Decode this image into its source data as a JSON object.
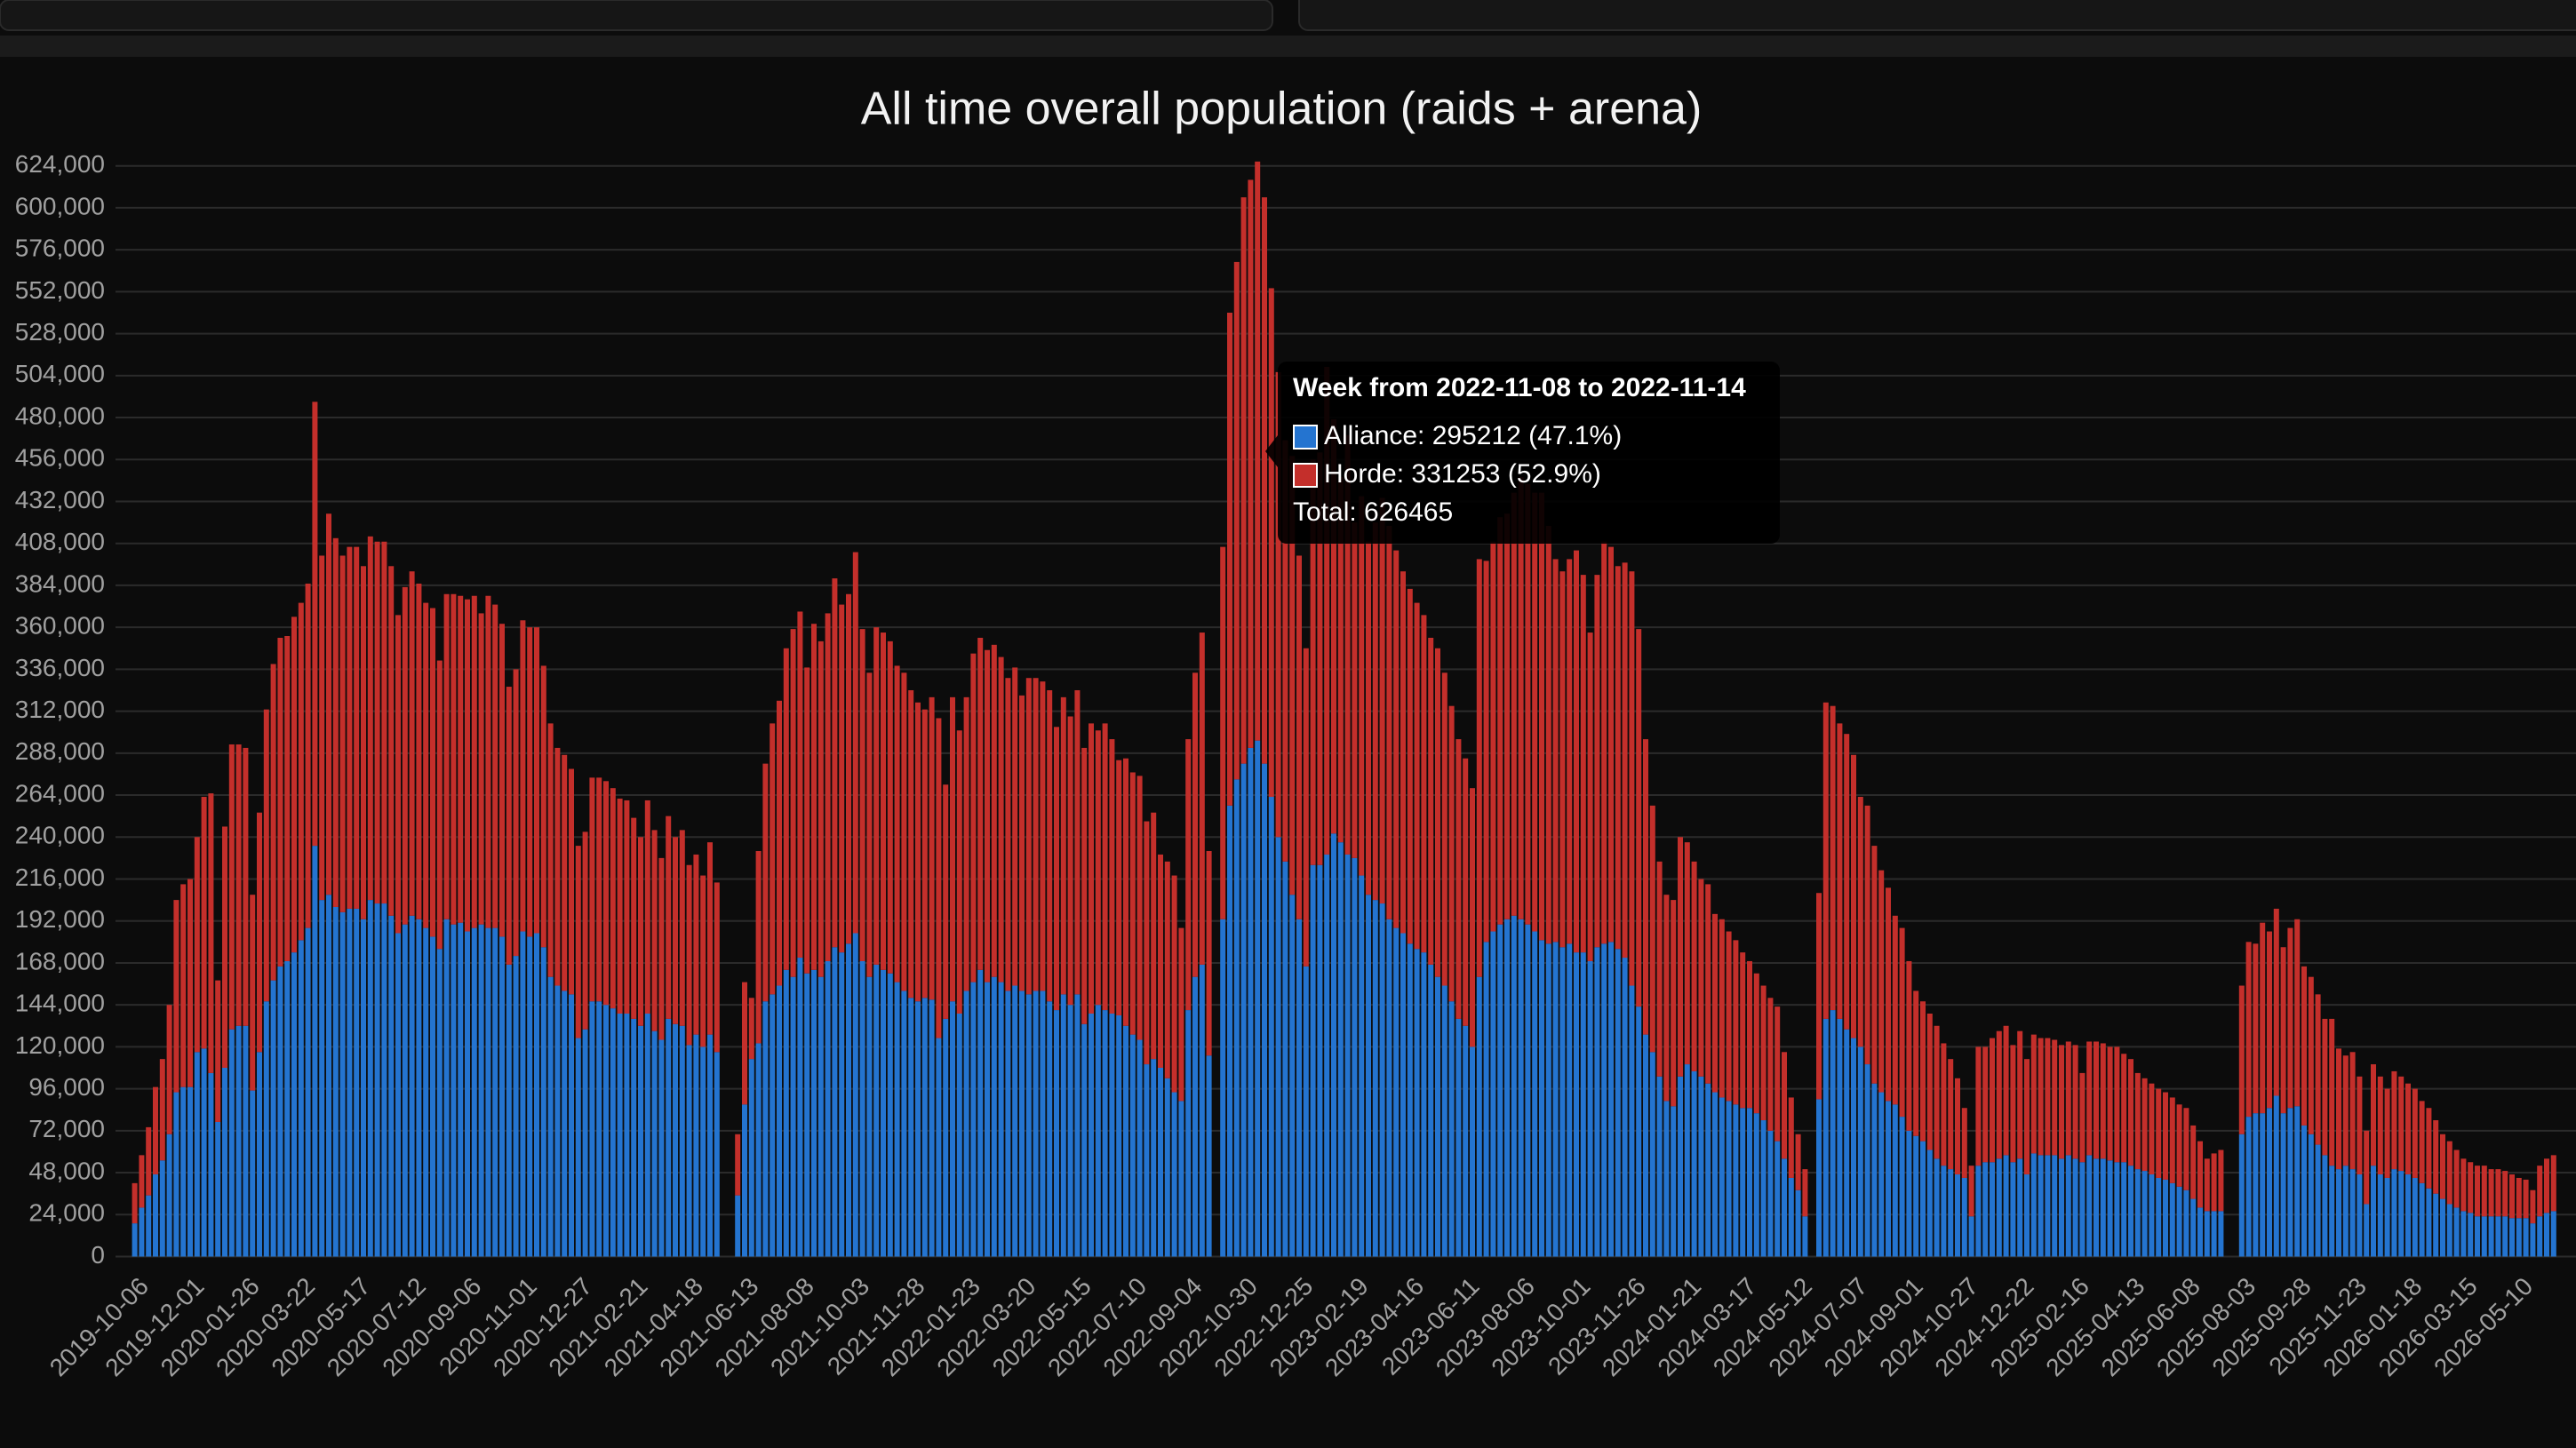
{
  "chart_data": {
    "type": "bar",
    "stacked": true,
    "grid": true,
    "title": "All time overall population (raids + arena)",
    "ylim": [
      0,
      624000
    ],
    "yticks": [
      0,
      {
        "value": 24000,
        "label": "24,000"
      },
      {
        "value": 48000,
        "label": "48,000"
      },
      {
        "value": 72000,
        "label": "72,000"
      },
      {
        "value": 96000,
        "label": "96,000"
      },
      {
        "value": 120000,
        "label": "120,000"
      },
      {
        "value": 144000,
        "label": "144,000"
      },
      {
        "value": 168000,
        "label": "168,000"
      },
      {
        "value": 192000,
        "label": "192,000"
      },
      {
        "value": 216000,
        "label": "216,000"
      },
      {
        "value": 240000,
        "label": "240,000"
      },
      {
        "value": 264000,
        "label": "264,000"
      },
      {
        "value": 288000,
        "label": "288,000"
      },
      {
        "value": 312000,
        "label": "312,000"
      },
      {
        "value": 336000,
        "label": "336,000"
      },
      {
        "value": 360000,
        "label": "360,000"
      },
      {
        "value": 384000,
        "label": "384,000"
      },
      {
        "value": 408000,
        "label": "408,000"
      },
      {
        "value": 432000,
        "label": "432,000"
      },
      {
        "value": 456000,
        "label": "456,000"
      },
      {
        "value": 480000,
        "label": "480,000"
      },
      {
        "value": 504000,
        "label": "504,000"
      },
      {
        "value": 528000,
        "label": "528,000"
      },
      {
        "value": 552000,
        "label": "552,000"
      },
      {
        "value": 576000,
        "label": "576,000"
      },
      {
        "value": 600000,
        "label": "600,000"
      },
      {
        "value": 624000,
        "label": "624,000"
      }
    ],
    "categories": [
      "2019-10-06",
      null,
      null,
      null,
      null,
      null,
      null,
      null,
      "2019-12-01",
      null,
      null,
      null,
      null,
      null,
      null,
      null,
      "2020-01-26",
      null,
      null,
      null,
      null,
      null,
      null,
      null,
      "2020-03-22",
      null,
      null,
      null,
      null,
      null,
      null,
      null,
      "2020-05-17",
      null,
      null,
      null,
      null,
      null,
      null,
      null,
      "2020-07-12",
      null,
      null,
      null,
      null,
      null,
      null,
      null,
      "2020-09-06",
      null,
      null,
      null,
      null,
      null,
      null,
      null,
      "2020-11-01",
      null,
      null,
      null,
      null,
      null,
      null,
      null,
      "2020-12-27",
      null,
      null,
      null,
      null,
      null,
      null,
      null,
      "2021-02-21",
      null,
      null,
      null,
      null,
      null,
      null,
      null,
      "2021-04-18",
      null,
      null,
      null,
      null,
      null,
      null,
      null,
      "2021-06-13",
      null,
      null,
      null,
      null,
      null,
      null,
      null,
      "2021-08-08",
      null,
      null,
      null,
      null,
      null,
      null,
      null,
      "2021-10-03",
      null,
      null,
      null,
      null,
      null,
      null,
      null,
      "2021-11-28",
      null,
      null,
      null,
      null,
      null,
      null,
      null,
      "2022-01-23",
      null,
      null,
      null,
      null,
      null,
      null,
      null,
      "2022-03-20",
      null,
      null,
      null,
      null,
      null,
      null,
      null,
      "2022-05-15",
      null,
      null,
      null,
      null,
      null,
      null,
      null,
      "2022-07-10",
      null,
      null,
      null,
      null,
      null,
      null,
      null,
      "2022-09-04",
      null,
      null,
      null,
      null,
      null,
      null,
      null,
      "2022-10-30",
      null,
      null,
      null,
      null,
      null,
      null,
      null,
      "2022-12-25",
      null,
      null,
      null,
      null,
      null,
      null,
      null,
      "2023-02-19",
      null,
      null,
      null,
      null,
      null,
      null,
      null,
      "2023-04-16",
      null,
      null,
      null,
      null,
      null,
      null,
      null,
      "2023-06-11",
      null,
      null,
      null,
      null,
      null,
      null,
      null,
      "2023-08-06",
      null,
      null,
      null,
      null,
      null,
      null,
      null,
      "2023-10-01",
      null,
      null,
      null,
      null,
      null,
      null,
      null,
      "2023-11-26",
      null,
      null,
      null,
      null,
      null,
      null,
      null,
      "2024-01-21",
      null,
      null,
      null,
      null,
      null,
      null,
      null,
      "2024-03-17",
      null,
      null,
      null,
      null,
      null,
      null,
      null,
      "2024-05-12",
      null,
      null,
      null,
      null,
      null,
      null,
      null,
      "2024-07-07",
      null,
      null,
      null,
      null,
      null,
      null,
      null,
      "2024-09-01",
      null,
      null,
      null,
      null,
      null,
      null,
      null,
      "2024-10-27",
      null,
      null,
      null,
      null,
      null,
      null,
      null,
      "2024-12-22",
      null,
      null,
      null,
      null,
      null,
      null,
      null,
      "2025-02-16",
      null,
      null,
      null,
      null,
      null,
      null,
      null,
      "2025-04-13",
      null,
      null,
      null,
      null,
      null,
      null,
      null,
      "2025-06-08",
      null,
      null,
      null,
      null,
      null,
      null,
      null,
      "2025-08-03",
      null,
      null,
      null,
      null,
      null,
      null,
      null,
      "2025-09-28",
      null,
      null,
      null,
      null,
      null,
      null,
      null,
      "2025-11-23",
      null,
      null,
      null,
      null,
      null,
      null,
      null,
      "2026-01-18",
      null,
      null,
      null,
      null,
      null,
      null,
      null,
      "2026-03-15",
      null,
      null,
      null,
      null,
      null,
      null,
      null,
      "2026-05-10",
      null,
      null,
      null,
      null,
      null
    ],
    "series": [
      {
        "name": "Alliance",
        "color": "#2474d0",
        "values": [
          19000,
          28000,
          35000,
          47000,
          55000,
          70000,
          94000,
          97000,
          97000,
          117000,
          119000,
          105000,
          77000,
          108000,
          130000,
          132000,
          132000,
          95000,
          117000,
          146000,
          158000,
          166000,
          169000,
          174000,
          181000,
          188000,
          235000,
          204000,
          207000,
          200000,
          197000,
          199000,
          199000,
          193000,
          204000,
          202000,
          202000,
          195000,
          185000,
          190000,
          195000,
          193000,
          188000,
          183000,
          176000,
          193000,
          190000,
          191000,
          186000,
          188000,
          190000,
          188000,
          188000,
          183000,
          167000,
          172000,
          186000,
          183000,
          185000,
          177000,
          160000,
          155000,
          152000,
          150000,
          125000,
          130000,
          146000,
          146000,
          144000,
          142000,
          139000,
          139000,
          136000,
          132000,
          139000,
          129000,
          124000,
          136000,
          133000,
          132000,
          121000,
          127000,
          120000,
          127000,
          117000,
          null,
          null,
          35000,
          87000,
          113000,
          122000,
          146000,
          150000,
          155000,
          164000,
          160000,
          171000,
          162000,
          164000,
          160000,
          169000,
          177000,
          174000,
          179000,
          185000,
          169000,
          160000,
          167000,
          164000,
          162000,
          157000,
          152000,
          148000,
          146000,
          148000,
          147000,
          125000,
          136000,
          146000,
          139000,
          152000,
          157000,
          164000,
          157000,
          160000,
          157000,
          152000,
          155000,
          152000,
          150000,
          152000,
          152000,
          146000,
          141000,
          150000,
          144000,
          150000,
          133000,
          139000,
          144000,
          141000,
          139000,
          138000,
          132000,
          127000,
          124000,
          110000,
          113000,
          108000,
          102000,
          94000,
          89000,
          141000,
          160000,
          167000,
          115000,
          null,
          193000,
          258000,
          273000,
          282000,
          291000,
          295212,
          282000,
          263000,
          240000,
          226000,
          207000,
          193000,
          166000,
          224000,
          224000,
          230000,
          242000,
          237000,
          230000,
          228000,
          218000,
          207000,
          204000,
          202000,
          193000,
          188000,
          185000,
          179000,
          176000,
          174000,
          167000,
          160000,
          155000,
          146000,
          136000,
          132000,
          120000,
          160000,
          180000,
          186000,
          190000,
          193000,
          195000,
          193000,
          190000,
          186000,
          181000,
          179000,
          180000,
          177000,
          179000,
          174000,
          174000,
          169000,
          177000,
          179000,
          180000,
          176000,
          171000,
          155000,
          143000,
          127000,
          117000,
          103000,
          89000,
          86000,
          103000,
          110000,
          106000,
          103000,
          99000,
          94000,
          91000,
          89000,
          87000,
          85000,
          85000,
          82000,
          78000,
          72000,
          66000,
          56000,
          45000,
          38000,
          23000,
          null,
          90000,
          136000,
          141000,
          136000,
          130000,
          125000,
          120000,
          110000,
          99000,
          94000,
          89000,
          87000,
          80000,
          72000,
          69000,
          66000,
          61000,
          56000,
          52000,
          50000,
          47000,
          45000,
          23000,
          52000,
          54000,
          54000,
          56000,
          58000,
          54000,
          56000,
          47000,
          59000,
          58000,
          58000,
          58000,
          56000,
          58000,
          56000,
          54000,
          58000,
          56000,
          56000,
          55000,
          54000,
          54000,
          52000,
          50000,
          49000,
          47000,
          45000,
          44000,
          42000,
          40000,
          38000,
          33000,
          28000,
          26000,
          26000,
          26000,
          null,
          null,
          70000,
          80000,
          82000,
          82000,
          85000,
          92000,
          82000,
          85000,
          86000,
          75000,
          70000,
          64000,
          58000,
          52000,
          50000,
          52000,
          50000,
          47000,
          30000,
          52000,
          47000,
          45000,
          50000,
          49000,
          47000,
          45000,
          42000,
          39000,
          36000,
          33000,
          30000,
          28000,
          26000,
          25000,
          23000,
          23000,
          23000,
          23000,
          23000,
          22000,
          22000,
          22000,
          19000,
          23000,
          25000,
          26000
        ]
      },
      {
        "name": "Horde",
        "color": "#c42f2b",
        "values": [
          23000,
          30000,
          39000,
          50000,
          58000,
          74000,
          110000,
          116000,
          119000,
          123000,
          144000,
          160000,
          81000,
          138000,
          163000,
          161000,
          159000,
          112000,
          137000,
          167000,
          181000,
          188000,
          186000,
          192000,
          193000,
          197000,
          254000,
          197000,
          218000,
          211000,
          204000,
          207000,
          207000,
          202000,
          208000,
          207000,
          207000,
          200000,
          182000,
          193000,
          197000,
          192000,
          186000,
          188000,
          165000,
          186000,
          189000,
          187000,
          190000,
          190000,
          178000,
          190000,
          185000,
          179000,
          159000,
          164000,
          178000,
          177000,
          175000,
          161000,
          145000,
          136000,
          135000,
          129000,
          110000,
          113000,
          128000,
          128000,
          128000,
          126000,
          123000,
          122000,
          115000,
          108000,
          122000,
          115000,
          104000,
          116000,
          107000,
          112000,
          103000,
          103000,
          98000,
          110000,
          97000,
          null,
          null,
          35000,
          70000,
          35000,
          110000,
          136000,
          155000,
          163000,
          184000,
          199000,
          198000,
          175000,
          198000,
          192000,
          199000,
          211000,
          199000,
          200000,
          218000,
          190000,
          174000,
          193000,
          193000,
          190000,
          181000,
          182000,
          176000,
          171000,
          165000,
          173000,
          183000,
          134000,
          174000,
          162000,
          168000,
          188000,
          190000,
          190000,
          190000,
          186000,
          179000,
          182000,
          169000,
          181000,
          179000,
          177000,
          178000,
          162000,
          170000,
          165000,
          174000,
          158000,
          166000,
          157000,
          164000,
          157000,
          146000,
          153000,
          150000,
          151000,
          139000,
          141000,
          122000,
          124000,
          124000,
          99000,
          155000,
          174000,
          190000,
          117000,
          null,
          213000,
          282000,
          296000,
          324000,
          325000,
          331253,
          324000,
          291000,
          266000,
          241000,
          251000,
          208000,
          182000,
          232000,
          236000,
          279000,
          237000,
          209000,
          240000,
          192000,
          217000,
          202000,
          216000,
          232000,
          225000,
          216000,
          207000,
          203000,
          198000,
          193000,
          187000,
          188000,
          179000,
          169000,
          160000,
          153000,
          148000,
          239000,
          218000,
          223000,
          233000,
          232000,
          242000,
          253000,
          252000,
          251000,
          256000,
          239000,
          219000,
          215000,
          220000,
          230000,
          216000,
          188000,
          213000,
          230000,
          226000,
          219000,
          226000,
          237000,
          216000,
          169000,
          141000,
          123000,
          118000,
          118000,
          137000,
          127000,
          120000,
          113000,
          114000,
          102000,
          102000,
          97000,
          94000,
          89000,
          84000,
          80000,
          77000,
          76000,
          77000,
          61000,
          46000,
          32000,
          27000,
          null,
          118000,
          181000,
          174000,
          169000,
          169000,
          162000,
          143000,
          148000,
          136000,
          127000,
          122000,
          108000,
          108000,
          97000,
          83000,
          80000,
          78000,
          76000,
          70000,
          63000,
          55000,
          40000,
          29000,
          68000,
          66000,
          71000,
          73000,
          74000,
          67000,
          73000,
          66000,
          68000,
          67000,
          67000,
          66000,
          65000,
          65000,
          65000,
          51000,
          65000,
          67000,
          66000,
          65000,
          66000,
          62000,
          61000,
          55000,
          53000,
          52000,
          51000,
          50000,
          49000,
          47000,
          47000,
          42000,
          38000,
          30000,
          33000,
          35000,
          null,
          null,
          85000,
          100000,
          97000,
          109000,
          101000,
          107000,
          95000,
          103000,
          107000,
          91000,
          90000,
          86000,
          78000,
          84000,
          69000,
          63000,
          67000,
          56000,
          42000,
          58000,
          56000,
          51000,
          56000,
          54000,
          52000,
          51000,
          47000,
          46000,
          42000,
          37000,
          36000,
          33000,
          30000,
          29000,
          29000,
          29000,
          27000,
          27000,
          26000,
          25000,
          23000,
          22000,
          19000,
          29000,
          31000,
          32000
        ]
      }
    ],
    "tooltip": {
      "title": "Week from 2022-11-08 to 2022-11-14",
      "items": [
        "Alliance: 295212 (47.1%)",
        "Horde: 331253 (52.9%)",
        "Total: 626465"
      ]
    }
  }
}
